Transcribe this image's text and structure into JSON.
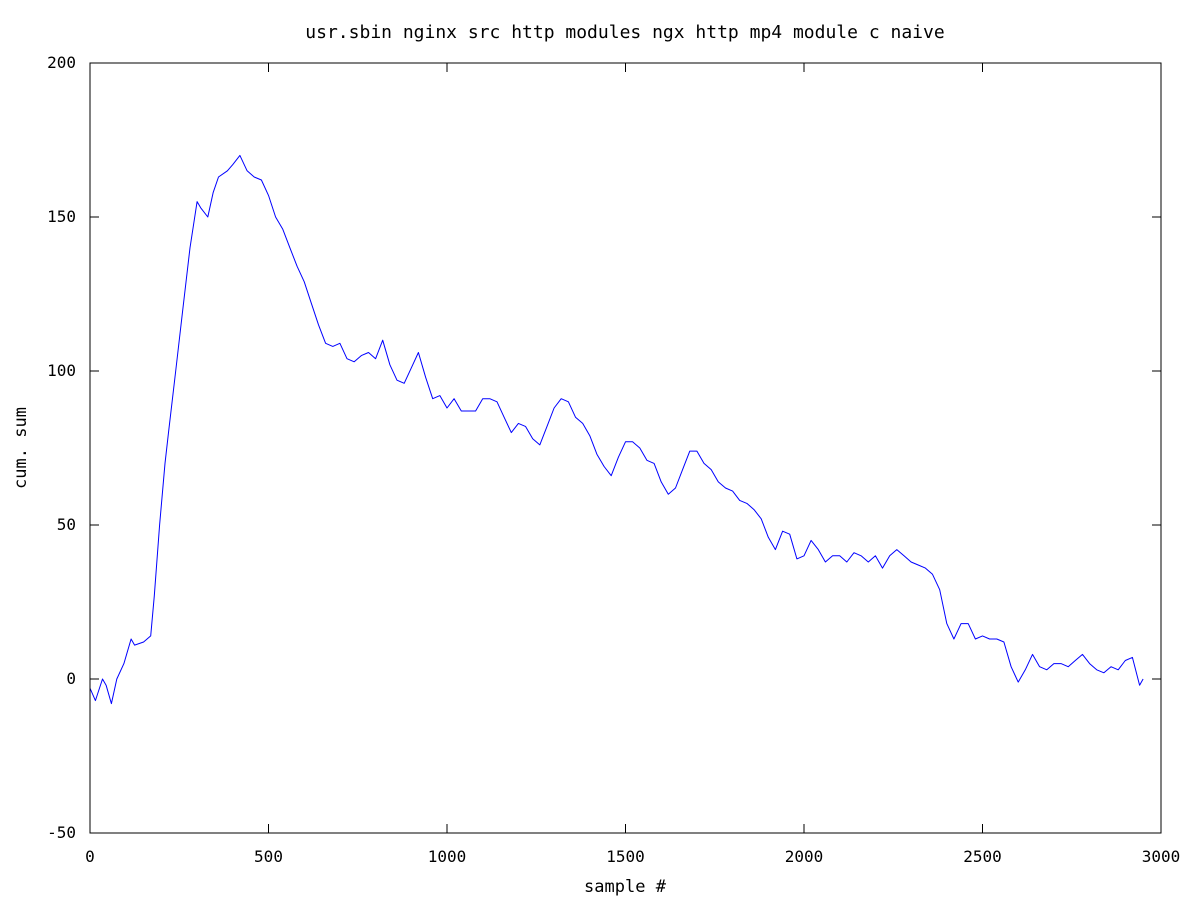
{
  "chart_data": {
    "type": "line",
    "title": "usr.sbin nginx src http modules ngx http mp4 module c naive",
    "xlabel": "sample #",
    "ylabel": "cum. sum",
    "xlim": [
      0,
      3000
    ],
    "ylim": [
      -50,
      200
    ],
    "xticks": [
      0,
      500,
      1000,
      1500,
      2000,
      2500,
      3000
    ],
    "yticks": [
      -50,
      0,
      50,
      100,
      150,
      200
    ],
    "grid": false,
    "legend": "none",
    "series": [
      {
        "color": "#0000ff",
        "x": [
          0,
          15,
          35,
          45,
          60,
          75,
          95,
          115,
          125,
          150,
          170,
          180,
          195,
          210,
          220,
          240,
          260,
          280,
          300,
          310,
          330,
          345,
          360,
          385,
          400,
          420,
          440,
          460,
          480,
          500,
          520,
          540,
          560,
          580,
          600,
          620,
          640,
          660,
          680,
          700,
          720,
          740,
          760,
          780,
          800,
          820,
          840,
          860,
          880,
          900,
          920,
          940,
          960,
          980,
          1000,
          1020,
          1040,
          1060,
          1080,
          1100,
          1120,
          1140,
          1160,
          1180,
          1200,
          1220,
          1240,
          1260,
          1280,
          1300,
          1320,
          1340,
          1360,
          1380,
          1400,
          1420,
          1440,
          1460,
          1480,
          1500,
          1520,
          1540,
          1560,
          1580,
          1600,
          1620,
          1640,
          1660,
          1680,
          1700,
          1720,
          1740,
          1760,
          1780,
          1800,
          1820,
          1840,
          1860,
          1880,
          1900,
          1920,
          1940,
          1960,
          1980,
          2000,
          2020,
          2040,
          2060,
          2080,
          2100,
          2120,
          2140,
          2160,
          2180,
          2200,
          2220,
          2240,
          2260,
          2280,
          2300,
          2320,
          2340,
          2360,
          2380,
          2400,
          2420,
          2440,
          2460,
          2480,
          2500,
          2520,
          2540,
          2560,
          2580,
          2600,
          2620,
          2640,
          2660,
          2680,
          2700,
          2720,
          2740,
          2760,
          2780,
          2800,
          2820,
          2840,
          2860,
          2880,
          2900,
          2920,
          2940,
          2950
        ],
        "y": [
          -3,
          -7,
          0,
          -2,
          -8,
          0,
          5,
          13,
          11,
          12,
          14,
          27,
          50,
          70,
          80,
          100,
          120,
          140,
          155,
          153,
          150,
          158,
          163,
          165,
          167,
          170,
          165,
          163,
          162,
          157,
          150,
          146,
          140,
          134,
          129,
          122,
          115,
          109,
          108,
          109,
          104,
          103,
          105,
          106,
          104,
          110,
          102,
          97,
          96,
          101,
          106,
          98,
          91,
          92,
          88,
          91,
          87,
          87,
          87,
          91,
          91,
          90,
          85,
          80,
          83,
          82,
          78,
          76,
          82,
          88,
          91,
          90,
          85,
          83,
          79,
          73,
          69,
          66,
          72,
          77,
          77,
          75,
          71,
          70,
          64,
          60,
          62,
          68,
          74,
          74,
          70,
          68,
          64,
          62,
          61,
          58,
          57,
          55,
          52,
          46,
          42,
          48,
          47,
          39,
          40,
          45,
          42,
          38,
          40,
          40,
          38,
          41,
          40,
          38,
          40,
          36,
          40,
          42,
          40,
          38,
          37,
          36,
          34,
          29,
          18,
          13,
          18,
          18,
          13,
          14,
          13,
          13,
          12,
          4,
          -1,
          3,
          8,
          4,
          3,
          5,
          5,
          4,
          6,
          8,
          5,
          3,
          2,
          4,
          3,
          6,
          7,
          -2,
          0
        ]
      }
    ]
  }
}
